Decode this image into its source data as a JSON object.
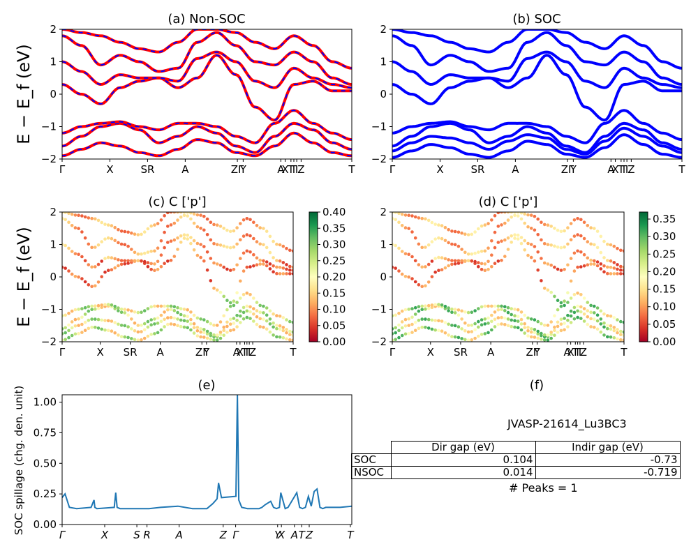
{
  "chart_data": [
    {
      "id": "a",
      "type": "line",
      "title": "(a) Non-SOC",
      "ylabel": "E − E_f (eV)",
      "ylim": [
        -2,
        2
      ],
      "yticks": [
        "−2",
        "−1",
        "0",
        "1",
        "2"
      ],
      "kpath_labels": [
        "Γ",
        "X",
        "SR",
        "A",
        "ZΓ",
        "Y",
        "A",
        "X",
        "T",
        "T",
        "I",
        "Z",
        "T"
      ],
      "series": [
        {
          "color": "#ff0000",
          "style": "solid"
        },
        {
          "color": "#0000ff",
          "style": "dashed"
        }
      ],
      "bands": [
        [
          -1.9,
          -1.7,
          -1.5,
          -1.6,
          -1.8,
          -1.9,
          -1.7,
          -1.4,
          -1.5,
          -1.8,
          -1.9,
          -1.6,
          -1.2,
          -1.5,
          -1.8,
          -1.9
        ],
        [
          -1.6,
          -1.3,
          -1.0,
          -0.9,
          -1.1,
          -1.5,
          -1.3,
          -1.0,
          -1.2,
          -1.6,
          -1.8,
          -1.3,
          -0.9,
          -1.1,
          -1.5,
          -1.7
        ],
        [
          -1.2,
          -1.0,
          -0.9,
          -0.85,
          -1.0,
          -1.1,
          -0.9,
          -0.9,
          -1.0,
          -1.3,
          -1.5,
          -0.9,
          -0.5,
          -0.9,
          -1.2,
          -1.4
        ],
        [
          0.3,
          0.0,
          -0.3,
          0.2,
          0.4,
          0.5,
          0.2,
          0.5,
          1.2,
          0.6,
          -0.4,
          -0.8,
          0.3,
          0.4,
          0.1,
          0.1
        ],
        [
          1.0,
          0.7,
          0.3,
          0.6,
          0.5,
          0.5,
          0.4,
          1.1,
          1.3,
          1.0,
          0.4,
          0.2,
          0.8,
          0.5,
          0.3,
          0.2
        ],
        [
          1.8,
          1.5,
          0.9,
          1.2,
          1.0,
          0.7,
          0.8,
          1.6,
          1.9,
          1.5,
          1.0,
          0.9,
          1.3,
          1.0,
          0.5,
          0.3
        ],
        [
          2.0,
          1.9,
          1.8,
          1.6,
          1.4,
          1.3,
          1.6,
          2.0,
          2.0,
          1.9,
          1.6,
          1.4,
          1.8,
          1.5,
          1.0,
          0.8
        ]
      ]
    },
    {
      "id": "b",
      "type": "line",
      "title": "(b) SOC",
      "ylim": [
        -2,
        2
      ],
      "yticks": [
        "−2",
        "−1",
        "0",
        "1",
        "2"
      ],
      "kpath_labels": [
        "Γ",
        "X",
        "SR",
        "A",
        "ZΓ",
        "Y",
        "A",
        "X",
        "T",
        "T",
        "I",
        "Z",
        "T"
      ],
      "series": [
        {
          "color": "#0000ff",
          "style": "solid"
        }
      ],
      "bands": [
        [
          -1.95,
          -1.75,
          -1.55,
          -1.65,
          -1.85,
          -1.95,
          -1.75,
          -1.45,
          -1.55,
          -1.85,
          -1.95,
          -1.65,
          -1.25,
          -1.55,
          -1.85,
          -1.95
        ],
        [
          -1.75,
          -1.5,
          -1.3,
          -1.35,
          -1.5,
          -1.7,
          -1.45,
          -1.25,
          -1.35,
          -1.7,
          -1.85,
          -1.45,
          -1.05,
          -1.3,
          -1.6,
          -1.8
        ],
        [
          -1.6,
          -1.3,
          -1.0,
          -0.9,
          -1.1,
          -1.5,
          -1.3,
          -1.0,
          -1.2,
          -1.6,
          -1.8,
          -1.3,
          -0.9,
          -1.1,
          -1.5,
          -1.7
        ],
        [
          -1.2,
          -1.0,
          -0.9,
          -0.85,
          -1.0,
          -1.1,
          -0.9,
          -0.9,
          -1.0,
          -1.3,
          -1.5,
          -0.9,
          -0.5,
          -0.9,
          -1.2,
          -1.4
        ],
        [
          0.3,
          0.0,
          -0.3,
          0.2,
          0.4,
          0.5,
          0.2,
          0.5,
          1.2,
          0.6,
          -0.4,
          -0.8,
          0.3,
          0.4,
          0.1,
          0.1
        ],
        [
          1.0,
          0.7,
          0.3,
          0.6,
          0.5,
          0.5,
          0.4,
          1.1,
          1.3,
          1.0,
          0.4,
          0.2,
          0.8,
          0.5,
          0.3,
          0.2
        ],
        [
          1.8,
          1.5,
          0.9,
          1.2,
          1.0,
          0.7,
          0.8,
          1.6,
          1.9,
          1.5,
          1.0,
          0.9,
          1.3,
          1.0,
          0.5,
          0.3
        ],
        [
          2.0,
          1.9,
          1.8,
          1.6,
          1.4,
          1.3,
          1.6,
          2.0,
          2.0,
          1.9,
          1.6,
          1.4,
          1.8,
          1.5,
          1.0,
          0.8
        ]
      ]
    },
    {
      "id": "c",
      "type": "scatter",
      "title": "(c)  C ['p']",
      "ylabel": "E − E_f (eV)",
      "ylim": [
        -2,
        2
      ],
      "yticks": [
        "−2",
        "−1",
        "0",
        "1",
        "2"
      ],
      "kpath_labels": [
        "Γ",
        "X",
        "SR",
        "A",
        "ZΓ",
        "Y",
        "A",
        "X",
        "T",
        "T",
        "I",
        "Z",
        "T"
      ],
      "colormap": "RdYlGn",
      "colorbar": {
        "min": 0.0,
        "max": 0.4,
        "ticks": [
          "0.00",
          "0.05",
          "0.10",
          "0.15",
          "0.20",
          "0.25",
          "0.30",
          "0.35",
          "0.40"
        ]
      }
    },
    {
      "id": "d",
      "type": "scatter",
      "title": "(d) C ['p']",
      "ylim": [
        -2,
        2
      ],
      "yticks": [
        "−2",
        "−1",
        "0",
        "1",
        "2"
      ],
      "kpath_labels": [
        "Γ",
        "X",
        "SR",
        "A",
        "ZΓ",
        "Y",
        "A",
        "X",
        "T",
        "T",
        "I",
        "Z",
        "T"
      ],
      "colormap": "RdYlGn",
      "colorbar": {
        "min": 0.0,
        "max": 0.37,
        "ticks": [
          "0.00",
          "0.05",
          "0.10",
          "0.15",
          "0.20",
          "0.25",
          "0.30",
          "0.35"
        ]
      }
    },
    {
      "id": "e",
      "type": "line",
      "title": "(e)",
      "ylabel": "SOC spillage (chg. den. unit)",
      "ylim": [
        0,
        1.06
      ],
      "yticks": [
        "0.00",
        "0.25",
        "0.50",
        "0.75",
        "1.00"
      ],
      "kpath_labels": [
        "Γ",
        "X",
        "S",
        "R",
        "A",
        "Z",
        "Γ",
        "Y",
        "X",
        "A",
        "T",
        "Z",
        "T"
      ],
      "color": "#1f77b4",
      "x": [
        0,
        0.01,
        0.025,
        0.05,
        0.1,
        0.11,
        0.113,
        0.12,
        0.18,
        0.185,
        0.19,
        0.2,
        0.3,
        0.34,
        0.4,
        0.45,
        0.5,
        0.52,
        0.535,
        0.54,
        0.55,
        0.6,
        0.605,
        0.61,
        0.62,
        0.64,
        0.68,
        0.69,
        0.7,
        0.72,
        0.73,
        0.74,
        0.75,
        0.755,
        0.77,
        0.78,
        0.81,
        0.82,
        0.83,
        0.84,
        0.85,
        0.86,
        0.87,
        0.88,
        0.89,
        0.9,
        0.91,
        0.93,
        0.96,
        1.0
      ],
      "y": [
        0.22,
        0.25,
        0.14,
        0.13,
        0.14,
        0.2,
        0.14,
        0.13,
        0.14,
        0.26,
        0.14,
        0.13,
        0.13,
        0.14,
        0.15,
        0.13,
        0.13,
        0.17,
        0.21,
        0.34,
        0.22,
        0.23,
        1.06,
        0.2,
        0.14,
        0.13,
        0.13,
        0.14,
        0.16,
        0.19,
        0.14,
        0.13,
        0.14,
        0.26,
        0.13,
        0.14,
        0.26,
        0.14,
        0.13,
        0.14,
        0.23,
        0.15,
        0.27,
        0.29,
        0.14,
        0.13,
        0.14,
        0.14,
        0.14,
        0.15
      ]
    },
    {
      "id": "f",
      "type": "table",
      "title": "(f)",
      "material": "JVASP-21614_Lu3BC3",
      "columns": [
        "Dir gap (eV)",
        "Indir gap (eV)"
      ],
      "rows": [
        {
          "label": "SOC",
          "dir": "0.104",
          "indir": "-0.73"
        },
        {
          "label": "NSOC",
          "dir": "0.014",
          "indir": "-0.719"
        }
      ],
      "peaks": "# Peaks = 1"
    }
  ]
}
